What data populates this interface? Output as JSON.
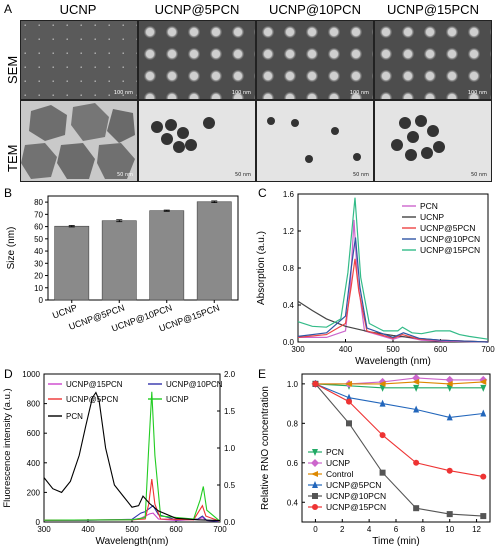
{
  "panelA": {
    "label": "A",
    "columns": [
      "UCNP",
      "UCNP@5PCN",
      "UCNP@10PCN",
      "UCNP@15PCN"
    ],
    "rows": [
      "SEM",
      "TEM"
    ],
    "scalebars_sem": [
      "100 nm",
      "100 nm",
      "100 nm",
      "100 nm"
    ],
    "scalebars_tem": [
      "50 nm",
      "50 nm",
      "50 nm",
      "50 nm"
    ]
  },
  "panelB": {
    "label": "B"
  },
  "panelC": {
    "label": "C"
  },
  "panelD": {
    "label": "D"
  },
  "panelE": {
    "label": "E"
  },
  "chart_data": [
    {
      "id": "B",
      "type": "bar",
      "categories": [
        "UCNP",
        "UCNP@5PCN",
        "UCNP@10PCN",
        "UCNP@15PCN"
      ],
      "values": [
        60.3,
        64.8,
        73.0,
        80.3
      ],
      "errors": [
        0.6,
        0.8,
        0.5,
        0.7
      ],
      "ylabel": "Size (nm)",
      "ylim": [
        0,
        85
      ],
      "yticks": [
        0,
        10,
        20,
        30,
        40,
        50,
        60,
        70,
        80
      ],
      "bar_color": "#8a8a8a"
    },
    {
      "id": "C",
      "type": "line",
      "xlabel": "Wavelength (nm)",
      "ylabel": "Absorption (a.u.)",
      "xlim": [
        300,
        700
      ],
      "ylim": [
        0,
        1.6
      ],
      "xticks": [
        300,
        400,
        500,
        600,
        700
      ],
      "yticks": [
        0.0,
        0.4,
        0.8,
        1.2,
        1.6
      ],
      "legend_position": "top-right",
      "series": [
        {
          "name": "PCN",
          "color": "#cc66cc",
          "points": [
            [
              300,
              0.05
            ],
            [
              360,
              0.05
            ],
            [
              400,
              0.12
            ],
            [
              410,
              0.6
            ],
            [
              418,
              1.32
            ],
            [
              425,
              0.7
            ],
            [
              440,
              0.12
            ],
            [
              500,
              0.03
            ],
            [
              520,
              0.06
            ],
            [
              560,
              0.02
            ],
            [
              600,
              0.01
            ],
            [
              700,
              0.0
            ]
          ]
        },
        {
          "name": "UCNP",
          "color": "#444444",
          "points": [
            [
              300,
              0.44
            ],
            [
              330,
              0.34
            ],
            [
              360,
              0.25
            ],
            [
              400,
              0.17
            ],
            [
              450,
              0.11
            ],
            [
              500,
              0.07
            ],
            [
              550,
              0.04
            ],
            [
              600,
              0.02
            ],
            [
              650,
              0.01
            ],
            [
              700,
              0.0
            ]
          ]
        },
        {
          "name": "UCNP@5PCN",
          "color": "#ee4444",
          "points": [
            [
              300,
              0.05
            ],
            [
              360,
              0.08
            ],
            [
              400,
              0.2
            ],
            [
              412,
              0.6
            ],
            [
              420,
              0.9
            ],
            [
              428,
              0.55
            ],
            [
              445,
              0.12
            ],
            [
              500,
              0.04
            ],
            [
              520,
              0.08
            ],
            [
              555,
              0.03
            ],
            [
              600,
              0.02
            ],
            [
              700,
              0.0
            ]
          ]
        },
        {
          "name": "UCNP@10PCN",
          "color": "#2f55a4",
          "points": [
            [
              300,
              0.06
            ],
            [
              360,
              0.1
            ],
            [
              400,
              0.28
            ],
            [
              412,
              0.8
            ],
            [
              421,
              1.13
            ],
            [
              430,
              0.6
            ],
            [
              445,
              0.15
            ],
            [
              500,
              0.05
            ],
            [
              522,
              0.1
            ],
            [
              555,
              0.04
            ],
            [
              600,
              0.02
            ],
            [
              700,
              0.0
            ]
          ]
        },
        {
          "name": "UCNP@15PCN",
          "color": "#33bb88",
          "points": [
            [
              300,
              0.22
            ],
            [
              330,
              0.17
            ],
            [
              360,
              0.16
            ],
            [
              390,
              0.25
            ],
            [
              405,
              0.75
            ],
            [
              420,
              1.56
            ],
            [
              432,
              0.7
            ],
            [
              450,
              0.2
            ],
            [
              480,
              0.12
            ],
            [
              510,
              0.12
            ],
            [
              520,
              0.16
            ],
            [
              540,
              0.1
            ],
            [
              560,
              0.09
            ],
            [
              590,
              0.12
            ],
            [
              620,
              0.12
            ],
            [
              640,
              0.08
            ],
            [
              660,
              0.06
            ],
            [
              700,
              0.03
            ]
          ]
        }
      ]
    },
    {
      "id": "D",
      "type": "line",
      "xlabel": "Wavelength(nm)",
      "ylabel": "Fluorescence intensity (a.u.)",
      "ylabel_right": "Absorbance (a.u.)",
      "xlim": [
        300,
        700
      ],
      "ylim": [
        0,
        1000
      ],
      "ylim_right": [
        0,
        2.0
      ],
      "xticks": [
        300,
        400,
        500,
        600,
        700
      ],
      "yticks": [
        0,
        200,
        400,
        600,
        800,
        1000
      ],
      "yticks_right": [
        0.0,
        0.5,
        1.0,
        1.5,
        2.0
      ],
      "series": [
        {
          "name": "UCNP@15PCN",
          "color": "#cc44cc",
          "axis": "left",
          "points": [
            [
              300,
              10
            ],
            [
              400,
              12
            ],
            [
              500,
              14
            ],
            [
              520,
              25
            ],
            [
              540,
              55
            ],
            [
              548,
              60
            ],
            [
              560,
              20
            ],
            [
              600,
              10
            ],
            [
              650,
              18
            ],
            [
              660,
              30
            ],
            [
              670,
              10
            ],
            [
              700,
              5
            ]
          ]
        },
        {
          "name": "UCNP@10PCN",
          "color": "#3333aa",
          "axis": "left",
          "points": [
            [
              300,
              12
            ],
            [
              400,
              12
            ],
            [
              500,
              18
            ],
            [
              520,
              60
            ],
            [
              530,
              70
            ],
            [
              548,
              110
            ],
            [
              560,
              50
            ],
            [
              600,
              15
            ],
            [
              650,
              20
            ],
            [
              660,
              40
            ],
            [
              670,
              10
            ],
            [
              700,
              5
            ]
          ]
        },
        {
          "name": "UCNP@5PCN",
          "color": "#ee3333",
          "axis": "left",
          "points": [
            [
              300,
              12
            ],
            [
              500,
              15
            ],
            [
              530,
              20
            ],
            [
              538,
              120
            ],
            [
              545,
              290
            ],
            [
              552,
              120
            ],
            [
              565,
              20
            ],
            [
              640,
              15
            ],
            [
              660,
              110
            ],
            [
              668,
              40
            ],
            [
              700,
              5
            ]
          ]
        },
        {
          "name": "UCNP",
          "color": "#22cc22",
          "axis": "left",
          "points": [
            [
              300,
              12
            ],
            [
              500,
              15
            ],
            [
              530,
              30
            ],
            [
              538,
              500
            ],
            [
              545,
              880
            ],
            [
              552,
              450
            ],
            [
              565,
              40
            ],
            [
              640,
              20
            ],
            [
              655,
              150
            ],
            [
              662,
              240
            ],
            [
              670,
              80
            ],
            [
              700,
              5
            ]
          ]
        },
        {
          "name": "PCN",
          "color": "#000000",
          "axis": "right",
          "points": [
            [
              300,
              0.6
            ],
            [
              320,
              0.45
            ],
            [
              340,
              0.4
            ],
            [
              360,
              0.55
            ],
            [
              380,
              0.9
            ],
            [
              395,
              1.3
            ],
            [
              410,
              1.68
            ],
            [
              418,
              1.75
            ],
            [
              425,
              1.65
            ],
            [
              440,
              1.0
            ],
            [
              460,
              0.5
            ],
            [
              480,
              0.35
            ],
            [
              500,
              0.2
            ],
            [
              515,
              0.22
            ],
            [
              525,
              0.35
            ],
            [
              540,
              0.25
            ],
            [
              560,
              0.15
            ],
            [
              600,
              0.05
            ],
            [
              650,
              0.03
            ],
            [
              700,
              0.02
            ]
          ]
        }
      ]
    },
    {
      "id": "E",
      "type": "line",
      "xlabel": "Time (min)",
      "ylabel": "Relative RNO concentration",
      "xlim": [
        -1,
        13
      ],
      "ylim": [
        0.3,
        1.05
      ],
      "xticks": [
        0,
        2,
        4,
        6,
        8,
        10,
        12
      ],
      "yticks": [
        0.4,
        0.6,
        0.8,
        1.0
      ],
      "series": [
        {
          "name": "PCN",
          "color": "#22aa66",
          "marker": "triangle-down",
          "x": [
            0,
            2.5,
            5,
            7.5,
            10,
            12.5
          ],
          "y": [
            1.0,
            0.99,
            0.98,
            0.98,
            0.98,
            0.98
          ]
        },
        {
          "name": "UCNP",
          "color": "#cc66cc",
          "marker": "diamond",
          "x": [
            0,
            2.5,
            5,
            7.5,
            10,
            12.5
          ],
          "y": [
            1.0,
            1.0,
            1.01,
            1.03,
            1.02,
            1.02
          ]
        },
        {
          "name": "Control",
          "color": "#dd8800",
          "marker": "triangle-left",
          "x": [
            0,
            2.5,
            5,
            7.5,
            10,
            12.5
          ],
          "y": [
            1.0,
            1.0,
            1.0,
            1.01,
            1.0,
            1.01
          ]
        },
        {
          "name": "UCNP@5PCN",
          "color": "#2266bb",
          "marker": "triangle-up",
          "x": [
            0,
            2.5,
            5,
            7.5,
            10,
            12.5
          ],
          "y": [
            1.0,
            0.93,
            0.9,
            0.87,
            0.83,
            0.85
          ]
        },
        {
          "name": "UCNP@10PCN",
          "color": "#555555",
          "marker": "square",
          "x": [
            0,
            2.5,
            5,
            7.5,
            10,
            12.5
          ],
          "y": [
            1.0,
            0.8,
            0.55,
            0.37,
            0.34,
            0.33
          ]
        },
        {
          "name": "UCNP@15PCN",
          "color": "#ee3333",
          "marker": "circle",
          "x": [
            0,
            2.5,
            5,
            7.5,
            10,
            12.5
          ],
          "y": [
            1.0,
            0.91,
            0.74,
            0.6,
            0.56,
            0.53
          ]
        }
      ]
    }
  ]
}
